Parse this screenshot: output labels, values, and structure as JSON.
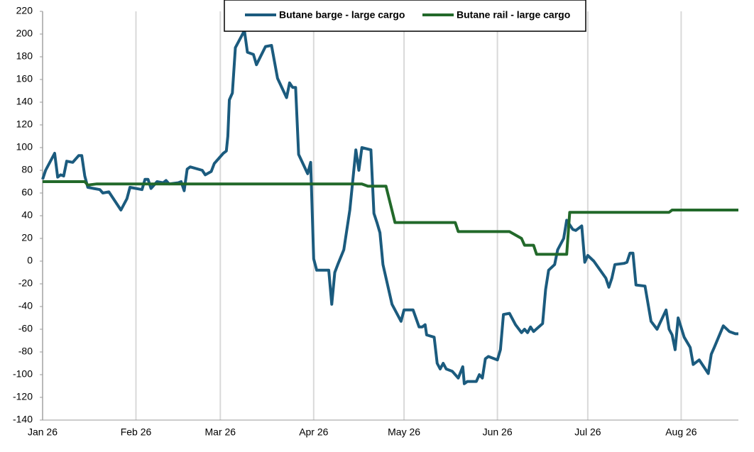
{
  "chart_data": {
    "type": "line",
    "series": [
      {
        "name": "Butane barge - large cargo",
        "color": "#1b5b7e",
        "x": [
          0,
          1,
          4,
          5,
          6,
          7,
          8,
          10,
          12,
          13,
          14,
          15,
          17,
          19,
          20,
          22,
          26,
          28,
          29,
          33,
          34,
          35,
          36,
          38,
          40,
          41,
          42,
          45,
          46,
          47,
          48,
          49,
          53,
          54,
          56,
          57,
          60,
          61,
          61.5,
          62,
          63,
          64,
          67,
          68,
          70,
          71,
          74,
          76,
          78,
          81,
          82,
          83,
          84,
          85,
          88,
          89,
          90,
          91,
          95,
          96,
          97,
          98,
          100,
          102,
          104,
          105,
          106,
          109,
          110,
          111,
          112,
          113,
          116,
          119,
          120,
          123,
          125,
          126,
          127,
          127.5,
          130,
          131,
          132,
          133,
          134,
          136,
          138,
          139.5,
          140,
          141,
          144,
          145,
          146,
          147,
          148,
          151,
          152,
          153,
          155,
          157,
          159,
          160,
          161,
          162,
          163,
          166,
          167,
          168,
          170,
          171,
          173,
          174,
          176,
          177,
          179,
          180,
          181,
          183,
          187,
          188,
          189,
          190,
          193,
          194,
          195,
          196,
          197,
          200,
          202,
          204,
          207,
          208,
          209,
          210,
          211,
          213,
          215,
          216,
          218,
          221,
          222,
          223,
          226,
          228,
          230,
          231
        ],
        "values": [
          72,
          80,
          95,
          74,
          76,
          75,
          88,
          87,
          93,
          93,
          75,
          65,
          64,
          63,
          60,
          61,
          45,
          55,
          65,
          63,
          72,
          72,
          64,
          70,
          69,
          71,
          68,
          69,
          70,
          62,
          81,
          83,
          80,
          76,
          79,
          86,
          95,
          97,
          110,
          142,
          148,
          188,
          203,
          184,
          182,
          173,
          189,
          190,
          161,
          144,
          157,
          153,
          153,
          94,
          77,
          87,
          2,
          -8,
          -8,
          -38,
          -10,
          -3,
          10,
          45,
          98,
          80,
          100,
          98,
          42,
          34,
          25,
          -3,
          -38,
          -53,
          -43,
          -43,
          -58,
          -58,
          -56,
          -65,
          -67,
          -90,
          -95,
          -90,
          -95,
          -97,
          -103,
          -93,
          -108,
          -106,
          -106,
          -100,
          -103,
          -86,
          -84,
          -87,
          -78,
          -47,
          -46,
          -56,
          -63,
          -60,
          -63,
          -58,
          -62,
          -55,
          -25,
          -8,
          -3,
          10,
          20,
          36,
          28,
          27,
          31,
          -1,
          5,
          0,
          -15,
          -23,
          -15,
          -3,
          -2,
          -1,
          7,
          7,
          -21,
          -22,
          -53,
          -60,
          -43,
          -60,
          -65,
          -78,
          -50,
          -67,
          -76,
          -91,
          -87,
          -99,
          -82,
          -76,
          -57,
          -62,
          -64,
          -64
        ]
      },
      {
        "name": "Butane rail - large cargo",
        "color": "#22692a",
        "x": [
          0,
          14,
          15,
          18,
          106,
          108,
          114,
          117,
          137,
          138,
          155,
          159,
          160,
          163,
          164,
          174,
          175,
          208,
          209,
          231
        ],
        "values": [
          70,
          70,
          67,
          68,
          68,
          66,
          66,
          34,
          34,
          26,
          26,
          20,
          14,
          14,
          6,
          6,
          43,
          43,
          45,
          45
        ]
      }
    ],
    "xlim": [
      0,
      231
    ],
    "xticks": [
      {
        "value": 0,
        "label": "Jan 26"
      },
      {
        "value": 31,
        "label": "Feb 26"
      },
      {
        "value": 59,
        "label": "Mar 26"
      },
      {
        "value": 90,
        "label": "Apr 26"
      },
      {
        "value": 120,
        "label": "May 26"
      },
      {
        "value": 151,
        "label": "Jun 26"
      },
      {
        "value": 181,
        "label": "Jul 26"
      },
      {
        "value": 212,
        "label": "Aug 26"
      }
    ],
    "ylim": [
      -140,
      220
    ],
    "yticks": [
      -140,
      -120,
      -100,
      -80,
      -60,
      -40,
      -20,
      0,
      20,
      40,
      60,
      80,
      100,
      120,
      140,
      160,
      180,
      200,
      220
    ],
    "grid": true
  }
}
